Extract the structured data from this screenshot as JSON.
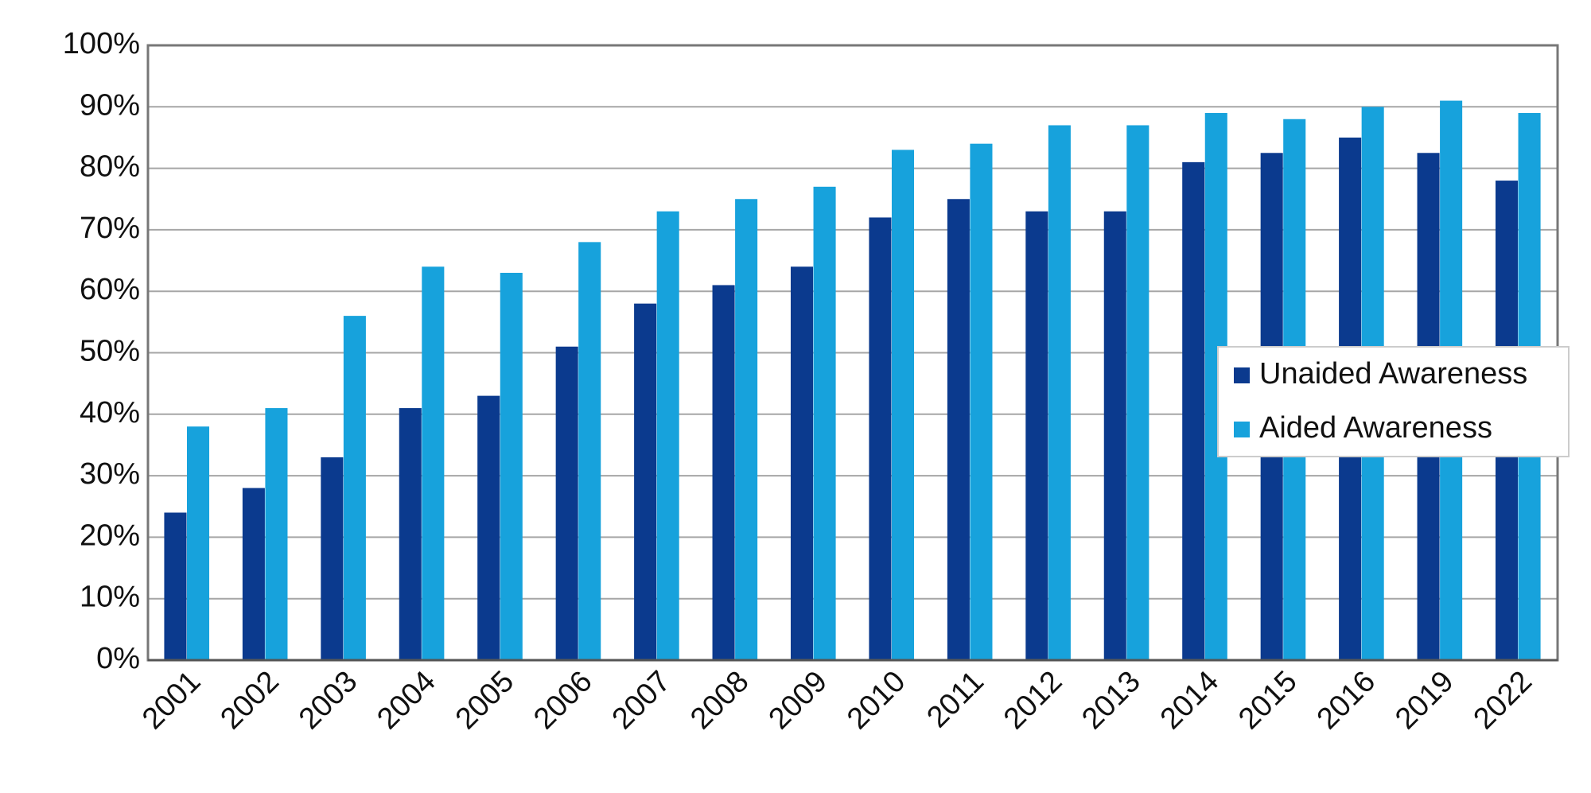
{
  "chart_data": {
    "type": "bar",
    "categories": [
      "2001",
      "2002",
      "2003",
      "2004",
      "2005",
      "2006",
      "2007",
      "2008",
      "2009",
      "2010",
      "2011",
      "2012",
      "2013",
      "2014",
      "2015",
      "2016",
      "2019",
      "2022"
    ],
    "series": [
      {
        "name": "Unaided Awareness",
        "color": "#0b3a8e",
        "values": [
          24,
          28,
          33,
          41,
          43,
          51,
          58,
          61,
          64,
          72,
          75,
          73,
          73,
          81,
          82.5,
          85,
          82.5,
          78
        ]
      },
      {
        "name": "Aided Awareness",
        "color": "#17a2dc",
        "values": [
          38,
          41,
          56,
          64,
          63,
          68,
          73,
          75,
          77,
          83,
          84,
          87,
          87,
          89,
          88,
          90,
          91,
          89
        ]
      }
    ],
    "ylim": [
      0,
      100
    ],
    "yticks": [
      {
        "value": 0,
        "label": "0%"
      },
      {
        "value": 10,
        "label": "10%"
      },
      {
        "value": 20,
        "label": "20%"
      },
      {
        "value": 30,
        "label": "30%"
      },
      {
        "value": 40,
        "label": "40%"
      },
      {
        "value": 50,
        "label": "50%"
      },
      {
        "value": 60,
        "label": "60%"
      },
      {
        "value": 70,
        "label": "70%"
      },
      {
        "value": 80,
        "label": "80%"
      },
      {
        "value": 90,
        "label": "90%"
      },
      {
        "value": 100,
        "label": "100%"
      }
    ],
    "grid": true,
    "legend": "right"
  }
}
